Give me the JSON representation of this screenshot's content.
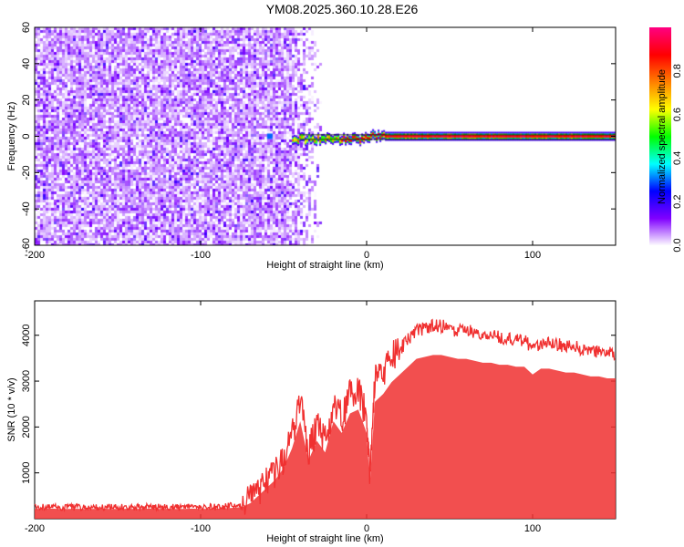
{
  "title": "YM08.2025.360.10.28.E26",
  "chart_data": [
    {
      "type": "heatmap",
      "xlabel": "Height of straight line (km)",
      "ylabel": "Frequency (Hz)",
      "xlim": [
        -200,
        150
      ],
      "ylim": [
        -60,
        60
      ],
      "xticks": [
        -200,
        -100,
        0,
        100
      ],
      "yticks": [
        -60,
        -40,
        -20,
        0,
        20,
        40,
        60
      ],
      "noise_region_km": [
        -200,
        -35
      ],
      "ridge": {
        "frequency_hz": 0,
        "start_km": -45,
        "end_km": 150
      },
      "colorbar": {
        "label": "Normalized spectral amplitude",
        "range": [
          0,
          1
        ],
        "ticks": [
          0.0,
          0.2,
          0.4,
          0.6,
          0.8
        ],
        "tick_labels": [
          "0.0",
          "0.2",
          "0.4",
          "0.6",
          "0.8"
        ],
        "colors": [
          "#ffffff",
          "#8000ff",
          "#0000ff",
          "#00ffff",
          "#00ff00",
          "#ffff00",
          "#ff8000",
          "#ff0000",
          "#ff0080"
        ]
      }
    },
    {
      "type": "line",
      "xlabel": "Height of straight line (km)",
      "ylabel": "SNR (10 * v/v)",
      "xlim": [
        -200,
        150
      ],
      "ylim": [
        0,
        4750
      ],
      "xticks": [
        -200,
        -100,
        0,
        100
      ],
      "yticks": [
        1000,
        2000,
        3000,
        4000
      ],
      "color": "#f03030",
      "x": [
        -200,
        -195,
        -190,
        -185,
        -180,
        -175,
        -170,
        -165,
        -160,
        -155,
        -150,
        -145,
        -140,
        -135,
        -130,
        -125,
        -120,
        -115,
        -110,
        -105,
        -100,
        -95,
        -90,
        -85,
        -80,
        -75,
        -70,
        -65,
        -60,
        -55,
        -50,
        -45,
        -40,
        -35,
        -30,
        -25,
        -20,
        -15,
        -10,
        -5,
        0,
        2,
        5,
        10,
        15,
        20,
        25,
        30,
        35,
        40,
        45,
        50,
        55,
        60,
        65,
        70,
        75,
        80,
        85,
        90,
        95,
        100,
        105,
        110,
        115,
        120,
        125,
        130,
        135,
        140,
        145,
        150
      ],
      "y": [
        250,
        250,
        260,
        250,
        250,
        255,
        250,
        250,
        260,
        250,
        250,
        255,
        250,
        250,
        260,
        250,
        255,
        250,
        250,
        260,
        250,
        255,
        260,
        270,
        280,
        300,
        400,
        600,
        800,
        1000,
        1300,
        1800,
        2500,
        1500,
        2000,
        1700,
        2500,
        2200,
        2700,
        2800,
        2200,
        900,
        3000,
        3200,
        3500,
        3700,
        3900,
        4100,
        4150,
        4200,
        4200,
        4150,
        4100,
        4100,
        4050,
        4000,
        4000,
        3950,
        3950,
        3900,
        3900,
        3700,
        3850,
        3850,
        3800,
        3750,
        3750,
        3700,
        3650,
        3650,
        3600,
        3600
      ]
    }
  ]
}
